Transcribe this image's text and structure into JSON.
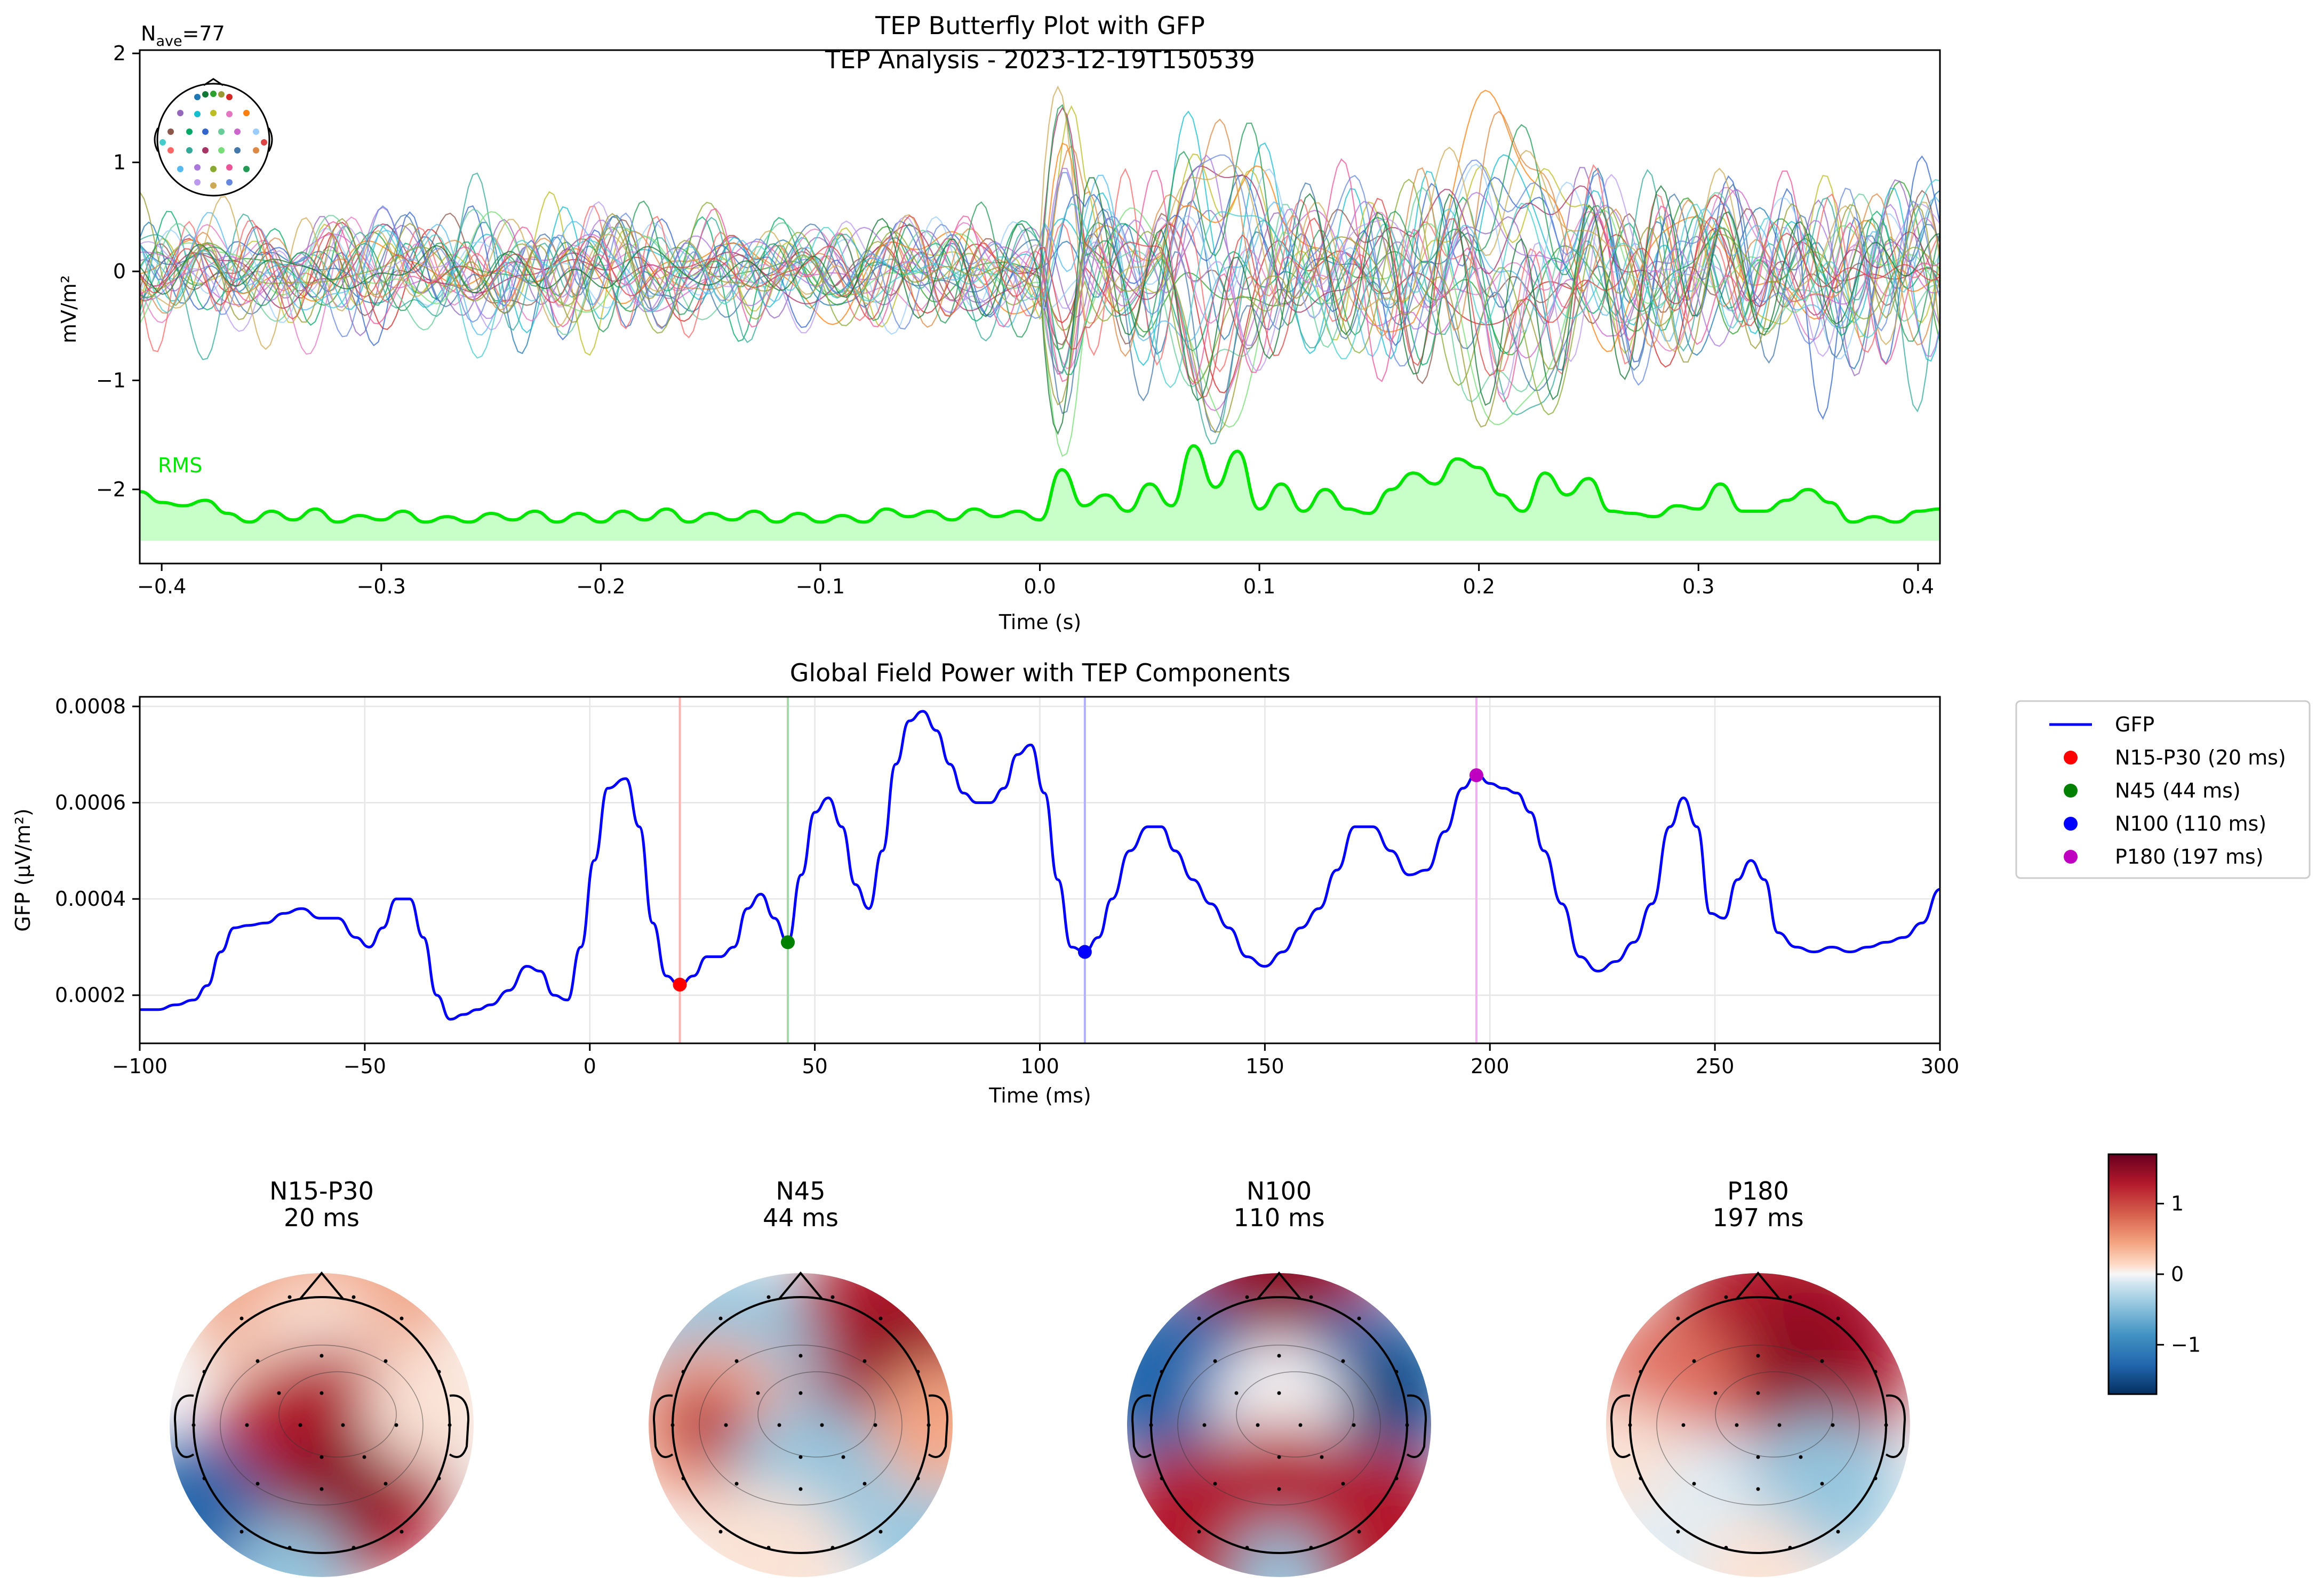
{
  "suptitle": "TEP Butterfly Plot with GFP",
  "chart_data": [
    {
      "type": "line",
      "id": "butterfly",
      "title": "TEP Analysis - 2023-12-19T150539",
      "nave_label": "N",
      "nave_sub": "ave",
      "nave_value": "=77",
      "xlabel": "Time (s)",
      "ylabel": "mV/m²",
      "xlim": [
        -0.41,
        0.41
      ],
      "ylim": [
        -2.68,
        2.03
      ],
      "xticks": [
        -0.4,
        -0.3,
        -0.2,
        -0.1,
        0.0,
        0.1,
        0.2,
        0.3,
        0.4
      ],
      "xtick_labels": [
        "−0.4",
        "−0.3",
        "−0.2",
        "−0.1",
        "0.0",
        "0.1",
        "0.2",
        "0.3",
        "0.4"
      ],
      "yticks": [
        -2,
        -1,
        0,
        1,
        2
      ],
      "ytick_labels": [
        "−2",
        "−1",
        "0",
        "1",
        "2"
      ],
      "rms_label": "RMS",
      "rms_color": "#00e600",
      "rms_fill_color": "#c8ffc8",
      "rms_baseline": -2.47,
      "rms": {
        "x": [
          -0.41,
          -0.4,
          -0.39,
          -0.38,
          -0.37,
          -0.36,
          -0.35,
          -0.34,
          -0.33,
          -0.32,
          -0.31,
          -0.3,
          -0.29,
          -0.28,
          -0.27,
          -0.26,
          -0.25,
          -0.24,
          -0.23,
          -0.22,
          -0.21,
          -0.2,
          -0.19,
          -0.18,
          -0.17,
          -0.16,
          -0.15,
          -0.14,
          -0.13,
          -0.12,
          -0.11,
          -0.1,
          -0.09,
          -0.08,
          -0.07,
          -0.06,
          -0.05,
          -0.04,
          -0.03,
          -0.02,
          -0.01,
          0.0,
          0.01,
          0.02,
          0.03,
          0.04,
          0.05,
          0.06,
          0.07,
          0.08,
          0.09,
          0.1,
          0.11,
          0.12,
          0.13,
          0.14,
          0.15,
          0.16,
          0.17,
          0.18,
          0.19,
          0.2,
          0.21,
          0.22,
          0.23,
          0.24,
          0.25,
          0.26,
          0.27,
          0.28,
          0.29,
          0.3,
          0.31,
          0.32,
          0.33,
          0.34,
          0.35,
          0.36,
          0.37,
          0.38,
          0.39,
          0.4,
          0.41
        ],
        "y": [
          -2.02,
          -2.12,
          -2.15,
          -2.1,
          -2.22,
          -2.3,
          -2.2,
          -2.28,
          -2.18,
          -2.3,
          -2.24,
          -2.28,
          -2.2,
          -2.3,
          -2.25,
          -2.3,
          -2.22,
          -2.28,
          -2.2,
          -2.3,
          -2.22,
          -2.3,
          -2.2,
          -2.28,
          -2.18,
          -2.3,
          -2.22,
          -2.28,
          -2.2,
          -2.3,
          -2.22,
          -2.3,
          -2.24,
          -2.3,
          -2.18,
          -2.25,
          -2.2,
          -2.28,
          -2.18,
          -2.25,
          -2.2,
          -2.28,
          -1.82,
          -2.15,
          -2.05,
          -2.2,
          -1.95,
          -2.15,
          -1.6,
          -1.98,
          -1.65,
          -2.18,
          -1.95,
          -2.2,
          -2.0,
          -2.18,
          -2.22,
          -2.0,
          -1.85,
          -1.95,
          -1.72,
          -1.8,
          -2.05,
          -2.2,
          -1.85,
          -2.05,
          -1.9,
          -2.2,
          -2.22,
          -2.25,
          -2.15,
          -2.18,
          -1.95,
          -2.2,
          -2.2,
          -2.1,
          -2.0,
          -2.12,
          -2.3,
          -2.25,
          -2.3,
          -2.2,
          -2.18
        ]
      },
      "n_channels": 32
    },
    {
      "type": "line",
      "id": "gfp",
      "title": "Global Field Power with TEP Components",
      "xlabel": "Time (ms)",
      "ylabel": "GFP (µV/m²)",
      "xlim": [
        -100,
        300
      ],
      "ylim": [
        0.0001,
        0.00082
      ],
      "xticks": [
        -100,
        -50,
        0,
        50,
        100,
        150,
        200,
        250,
        300
      ],
      "xtick_labels": [
        "−100",
        "−50",
        "0",
        "50",
        "100",
        "150",
        "200",
        "250",
        "300"
      ],
      "yticks": [
        0.0002,
        0.0004,
        0.0006,
        0.0008
      ],
      "ytick_labels": [
        "0.0002",
        "0.0004",
        "0.0006",
        "0.0008"
      ],
      "grid": true,
      "legend_position": "outside-right",
      "series": [
        {
          "name": "GFP",
          "color": "#0000ff",
          "x": [
            -100,
            -96,
            -92,
            -88,
            -85,
            -82,
            -79,
            -76,
            -72,
            -68,
            -64,
            -60,
            -56,
            -52,
            -49,
            -46,
            -43,
            -40,
            -37,
            -34,
            -31,
            -28,
            -25,
            -22,
            -18,
            -14,
            -11,
            -8,
            -5,
            -2,
            1,
            4,
            8,
            11,
            14,
            17,
            20,
            23,
            26,
            29,
            32,
            35,
            38,
            41,
            44,
            47,
            50,
            53,
            56,
            59,
            62,
            65,
            68,
            71,
            74,
            77,
            80,
            83,
            86,
            89,
            92,
            95,
            98,
            101,
            104,
            107,
            110,
            113,
            116,
            120,
            124,
            127,
            130,
            134,
            138,
            142,
            146,
            150,
            154,
            158,
            162,
            166,
            170,
            174,
            178,
            182,
            186,
            190,
            194,
            197,
            200,
            203,
            206,
            209,
            212,
            216,
            220,
            224,
            228,
            232,
            236,
            240,
            243,
            246,
            249,
            252,
            255,
            258,
            261,
            264,
            268,
            272,
            276,
            280,
            284,
            288,
            292,
            296,
            300
          ],
          "y": [
            0.00017,
            0.00017,
            0.00018,
            0.00019,
            0.00022,
            0.00029,
            0.00034,
            0.000345,
            0.00035,
            0.00037,
            0.00038,
            0.00036,
            0.00036,
            0.00032,
            0.0003,
            0.00034,
            0.0004,
            0.0004,
            0.00032,
            0.0002,
            0.00015,
            0.00016,
            0.00017,
            0.00018,
            0.00021,
            0.00026,
            0.00025,
            0.0002,
            0.00019,
            0.0003,
            0.00048,
            0.00063,
            0.00065,
            0.00055,
            0.00035,
            0.00024,
            0.00022,
            0.00024,
            0.00028,
            0.00028,
            0.0003,
            0.00038,
            0.00041,
            0.00036,
            0.00031,
            0.00045,
            0.00058,
            0.00061,
            0.00055,
            0.00043,
            0.00038,
            0.0005,
            0.00068,
            0.00077,
            0.00079,
            0.00075,
            0.00068,
            0.00062,
            0.0006,
            0.0006,
            0.00063,
            0.0007,
            0.00072,
            0.00062,
            0.00044,
            0.0003,
            0.00029,
            0.00032,
            0.0004,
            0.0005,
            0.00055,
            0.00055,
            0.0005,
            0.00044,
            0.00039,
            0.00034,
            0.00028,
            0.00026,
            0.00029,
            0.00034,
            0.00038,
            0.00046,
            0.00055,
            0.00055,
            0.0005,
            0.00045,
            0.00046,
            0.00054,
            0.00063,
            0.00066,
            0.00064,
            0.00063,
            0.00062,
            0.00058,
            0.0005,
            0.00039,
            0.00028,
            0.00025,
            0.00027,
            0.00031,
            0.00039,
            0.00055,
            0.00061,
            0.00055,
            0.00037,
            0.00036,
            0.00044,
            0.00048,
            0.00044,
            0.00033,
            0.0003,
            0.00029,
            0.0003,
            0.00029,
            0.0003,
            0.00031,
            0.00032,
            0.00035,
            0.00042
          ]
        }
      ],
      "components": [
        {
          "name": "N15-P30 (20 ms)",
          "label": "N15-P30",
          "time_label": "20 ms",
          "t": 20,
          "gfp": 0.000222,
          "color": "#ff0000",
          "line_color": "#ffb0b0"
        },
        {
          "name": "N45 (44 ms)",
          "label": "N45",
          "time_label": "44 ms",
          "t": 44,
          "gfp": 0.00031,
          "color": "#008000",
          "line_color": "#a8d8a8"
        },
        {
          "name": "N100 (110 ms)",
          "label": "N100",
          "time_label": "110 ms",
          "t": 110,
          "gfp": 0.00029,
          "color": "#0000ff",
          "line_color": "#b0b0ff"
        },
        {
          "name": "P180 (197 ms)",
          "label": "P180",
          "time_label": "197 ms",
          "t": 197,
          "gfp": 0.000657,
          "color": "#c000c0",
          "line_color": "#f0b0f0"
        }
      ]
    },
    {
      "type": "heatmap",
      "id": "topomaps",
      "colormap": "RdBu_r",
      "colorbar_range": [
        -1.7,
        1.7
      ],
      "colorbar_ticks": [
        1,
        0,
        -1
      ],
      "colorbar_tick_labels": [
        "1",
        "0",
        "−1"
      ],
      "maps": [
        {
          "title": "N15-P30",
          "time_label": "20 ms"
        },
        {
          "title": "N45",
          "time_label": "44 ms"
        },
        {
          "title": "N100",
          "time_label": "110 ms"
        },
        {
          "title": "P180",
          "time_label": "197 ms"
        }
      ]
    }
  ]
}
